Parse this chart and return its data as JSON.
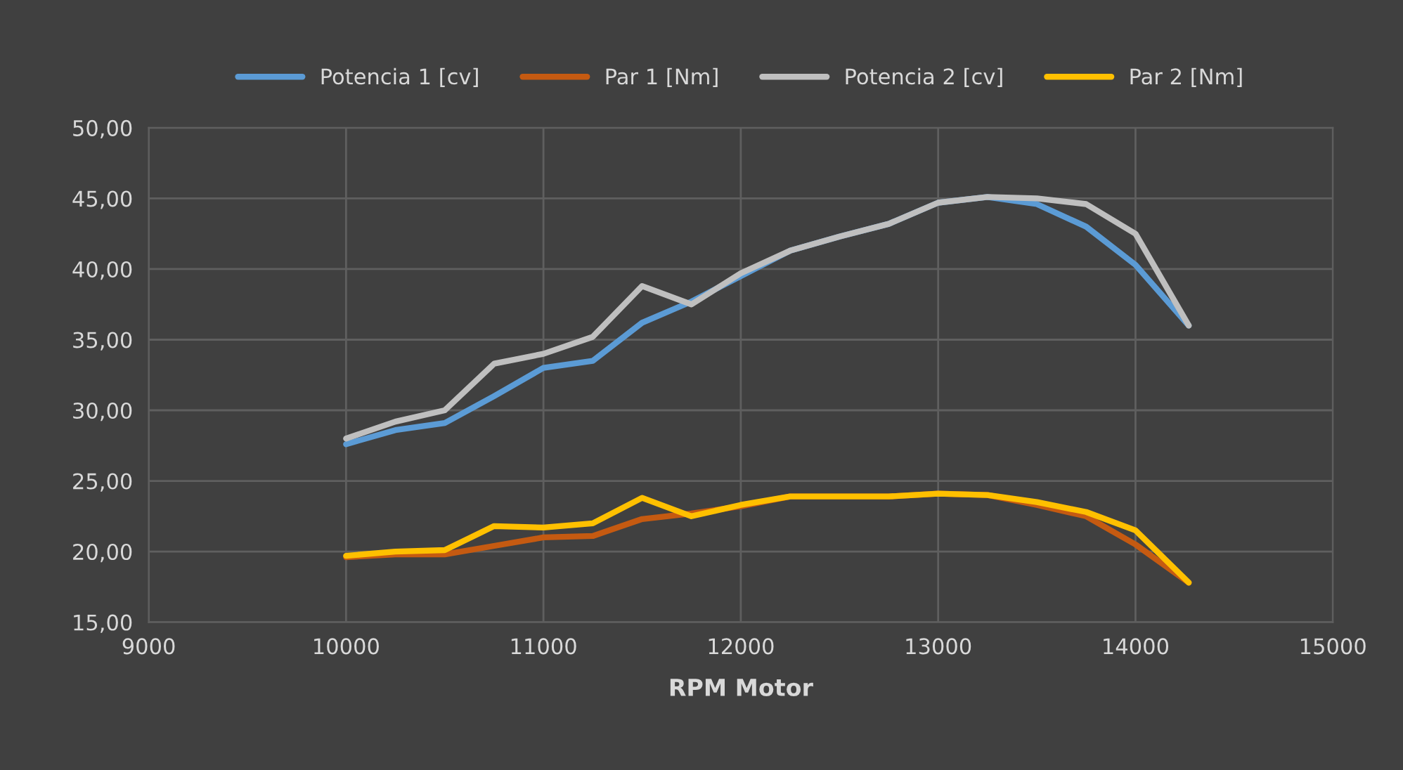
{
  "chart_data": {
    "type": "line",
    "xlabel": "RPM Motor",
    "x": [
      10000,
      10250,
      10500,
      10750,
      11000,
      11250,
      11500,
      11750,
      12000,
      12250,
      12500,
      12750,
      13000,
      13250,
      13500,
      13750,
      14000,
      14270
    ],
    "series": [
      {
        "name": "Potencia 1 [cv]",
        "color": "#5b9bd5",
        "values": [
          27.6,
          28.6,
          29.1,
          31.0,
          33.0,
          33.5,
          36.2,
          37.7,
          39.5,
          41.3,
          42.3,
          43.2,
          44.7,
          45.1,
          44.6,
          43.0,
          40.3,
          36.0
        ]
      },
      {
        "name": "Par 1 [Nm]",
        "color": "#c55a11",
        "values": [
          19.6,
          19.8,
          19.8,
          20.4,
          21.0,
          21.1,
          22.3,
          22.7,
          23.2,
          23.9,
          23.9,
          23.9,
          24.1,
          24.0,
          23.3,
          22.5,
          20.5,
          17.8
        ]
      },
      {
        "name": "Potencia 2 [cv]",
        "color": "#bfbfbf",
        "values": [
          28.0,
          29.2,
          30.0,
          33.3,
          34.0,
          35.2,
          38.8,
          37.5,
          39.7,
          41.3,
          42.3,
          43.2,
          44.7,
          45.1,
          45.0,
          44.6,
          42.5,
          36.0
        ]
      },
      {
        "name": "Par 2 [Nm]",
        "color": "#ffc000",
        "values": [
          19.7,
          20.0,
          20.1,
          21.8,
          21.7,
          22.0,
          23.8,
          22.5,
          23.3,
          23.9,
          23.9,
          23.9,
          24.1,
          24.0,
          23.5,
          22.8,
          21.5,
          17.8
        ]
      }
    ],
    "xlim": [
      9000,
      15000
    ],
    "xticks": [
      9000,
      10000,
      11000,
      12000,
      13000,
      14000,
      15000
    ],
    "ylim": [
      15,
      50
    ],
    "yticks": [
      {
        "value": 15,
        "label": "15,00"
      },
      {
        "value": 20,
        "label": "20,00"
      },
      {
        "value": 25,
        "label": "25,00"
      },
      {
        "value": 30,
        "label": "30,00"
      },
      {
        "value": 35,
        "label": "35,00"
      },
      {
        "value": 40,
        "label": "40,00"
      },
      {
        "value": 45,
        "label": "45,00"
      },
      {
        "value": 50,
        "label": "50,00"
      }
    ],
    "grid": true,
    "legend": "top",
    "marker": "none",
    "line_style": "solid"
  }
}
